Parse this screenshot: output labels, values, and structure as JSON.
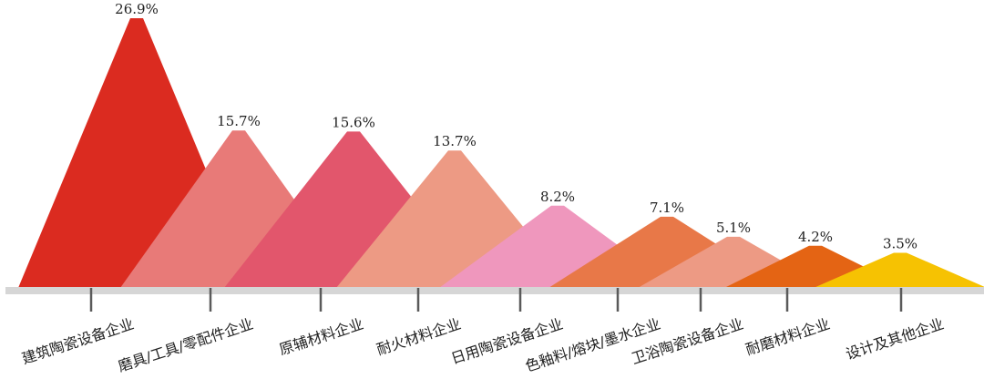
{
  "chart_data": {
    "type": "bar",
    "title": "",
    "categories": [
      "建筑陶瓷设备企业",
      "磨具/工具/零配件企业",
      "原辅材料企业",
      "耐火材料企业",
      "日用陶瓷设备企业",
      "色釉料/熔块/墨水企业",
      "卫浴陶瓷设备企业",
      "耐磨材料企业",
      "设计及其他企业"
    ],
    "values": [
      26.9,
      15.7,
      15.6,
      13.7,
      8.2,
      7.1,
      5.1,
      4.2,
      3.5
    ],
    "value_labels": [
      "26.9%",
      "15.7%",
      "15.6%",
      "13.7%",
      "8.2%",
      "7.1%",
      "5.1%",
      "4.2%",
      "3.5%"
    ],
    "unit": "%",
    "ylim": [
      0,
      28
    ],
    "grid": false,
    "legend": "none",
    "colors": [
      "#db2b20",
      "#e87a78",
      "#e2566c",
      "#ed9a84",
      "#ef97bd",
      "#e87848",
      "#ed9a84",
      "#e46414",
      "#f6c202"
    ]
  }
}
